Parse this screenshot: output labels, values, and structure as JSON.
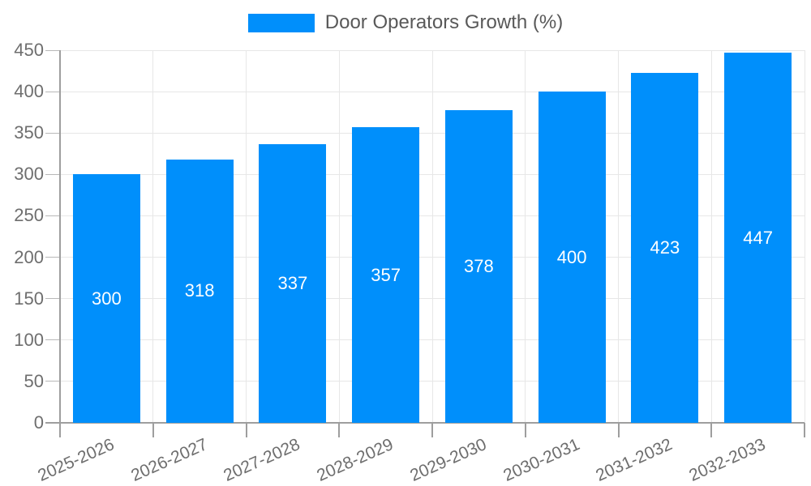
{
  "chart_data": {
    "type": "bar",
    "title": "Door Operators Growth (%)",
    "legend_position": "top",
    "categories": [
      "2025-2026",
      "2026-2027",
      "2027-2028",
      "2028-2029",
      "2029-2030",
      "2030-2031",
      "2031-2032",
      "2032-2033"
    ],
    "series": [
      {
        "name": "Door Operators Growth (%)",
        "color": "#008FFB",
        "values": [
          300,
          318,
          337,
          357,
          378,
          400,
          423,
          447
        ]
      }
    ],
    "data_labels_shown": true,
    "xlabel": "",
    "ylabel": "",
    "ylim": [
      0,
      450
    ],
    "ytick_step": 50,
    "ytick_labels": [
      "0",
      "50",
      "100",
      "150",
      "200",
      "250",
      "300",
      "350",
      "400",
      "450"
    ],
    "grid": true,
    "colors": {
      "bar": "#008FFB",
      "bar_label_text": "#ffffff",
      "axis_line": "#9e9e9e",
      "gridline": "#e7e7e7",
      "tick_label_text": "#6e6e6e",
      "legend_text": "#595959"
    }
  }
}
